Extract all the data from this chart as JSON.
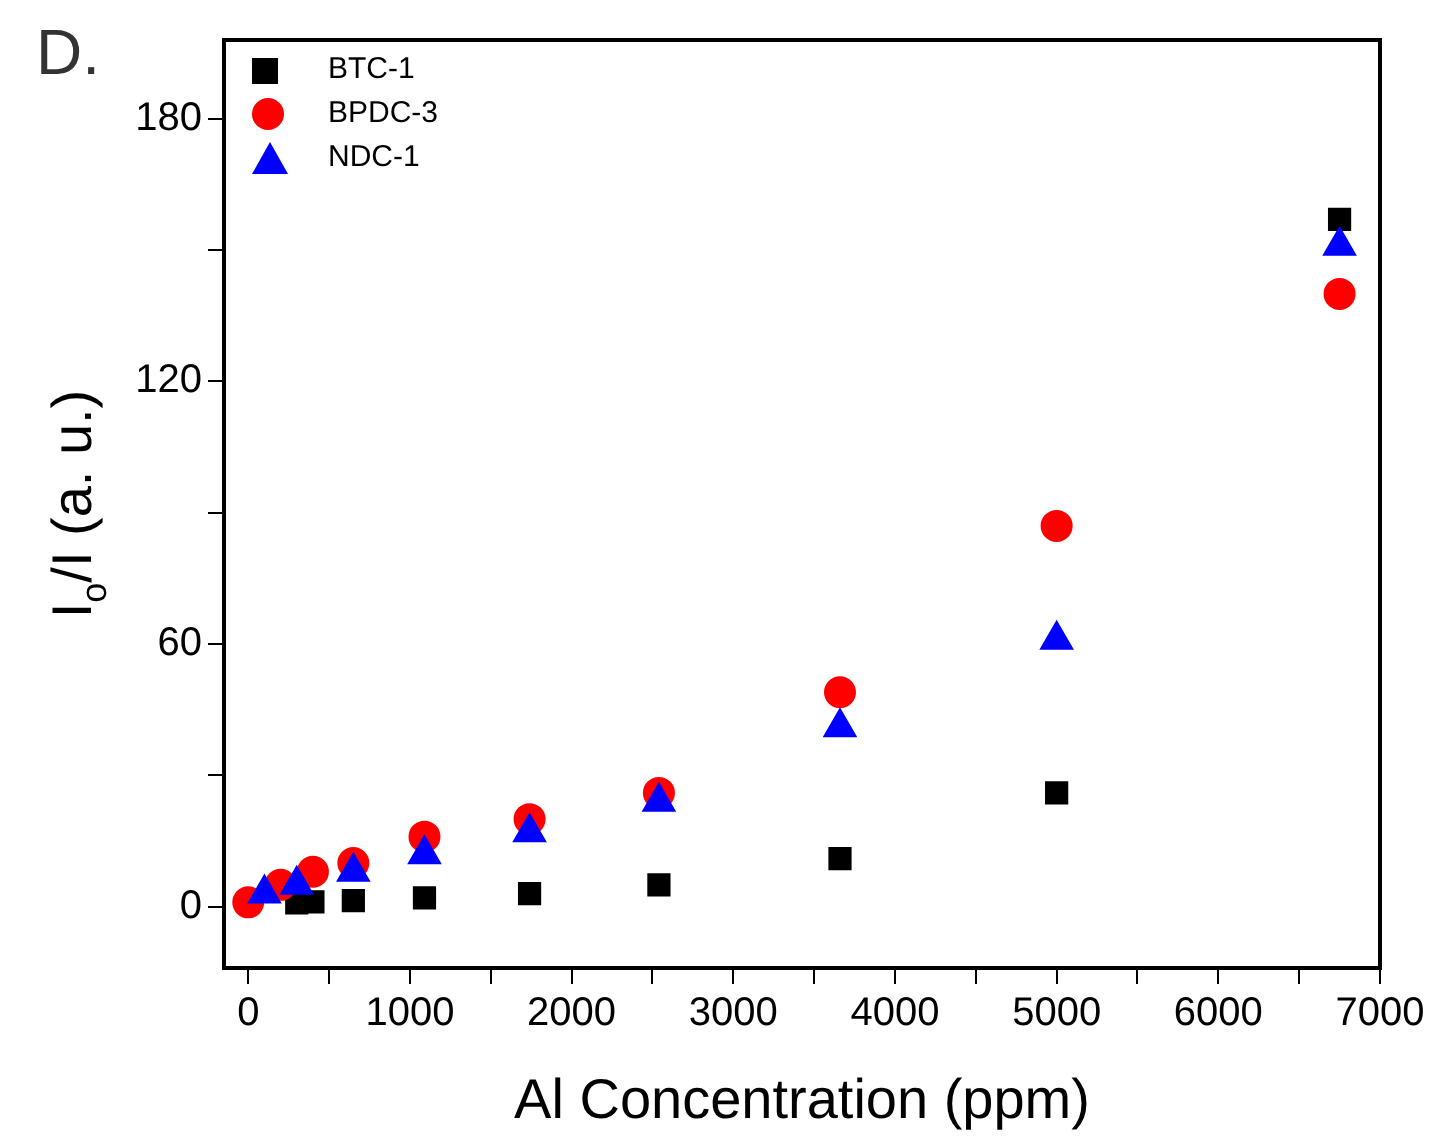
{
  "chart_data": {
    "type": "scatter",
    "xlabel": "Al Concentration (ppm)",
    "ylabel": "I$_{o}$/I (a. u.)",
    "annotations": [
      "D."
    ],
    "xlim": [
      -150,
      7000
    ],
    "xticks": [
      0,
      {
        "value": 500,
        "label": null
      },
      1000,
      {
        "value": 1500,
        "label": null
      },
      2000,
      {
        "value": 2500,
        "label": null
      },
      3000,
      {
        "value": 3500,
        "label": null
      },
      4000,
      {
        "value": 4500,
        "label": null
      },
      5000,
      {
        "value": 5500,
        "label": null
      },
      6000,
      {
        "value": 6500,
        "label": null
      },
      7000
    ],
    "ylim": [
      -14,
      198
    ],
    "yticks": [
      0,
      {
        "value": 30,
        "label": null
      },
      60,
      {
        "value": 90,
        "label": null
      },
      120,
      {
        "value": 150,
        "label": null
      },
      180
    ],
    "grid": false,
    "legend": "top left",
    "series": [
      {
        "name": "BTC-1",
        "color": "#000000",
        "marker": "square",
        "x": [
          300,
          400,
          650,
          1090,
          1740,
          2540,
          3660,
          5000,
          6750
        ],
        "values": [
          0.9,
          1.1,
          1.4,
          2,
          3,
          5,
          11,
          26,
          157
        ]
      },
      {
        "name": "BPDC-3",
        "color": "#ff0000",
        "marker": "circle",
        "x": [
          0,
          200,
          400,
          650,
          1090,
          1740,
          2540,
          3660,
          5000,
          6750
        ],
        "values": [
          1,
          5,
          8,
          10,
          16,
          20,
          26,
          49,
          87,
          140
        ]
      },
      {
        "name": "NDC-1",
        "color": "#0000ff",
        "marker": "triangle",
        "x": [
          100,
          300,
          650,
          1090,
          1740,
          2540,
          3660,
          5000,
          6750
        ],
        "values": [
          3,
          5,
          8,
          12,
          17,
          24,
          41,
          61,
          151
        ]
      }
    ]
  }
}
